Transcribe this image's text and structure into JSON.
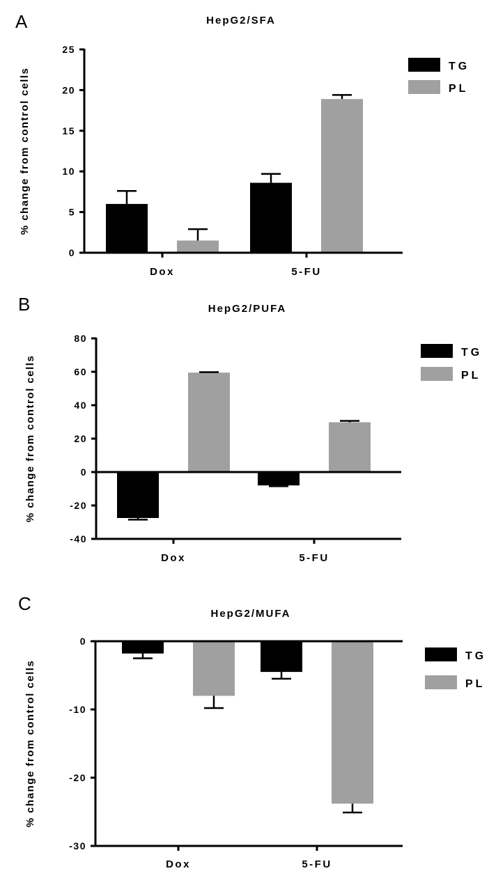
{
  "chart_data": [
    {
      "type": "bar",
      "panel": "A",
      "title": "HepG2/SFA",
      "ylabel": "% change from control cells",
      "xlabel": "",
      "categories": [
        "Dox",
        "5-FU"
      ],
      "ylim": [
        0,
        25
      ],
      "yticks": [
        0,
        5,
        10,
        15,
        20,
        25
      ],
      "ytick_labels": [
        "0",
        "5",
        "10",
        "15",
        "20",
        "25"
      ],
      "legend_position": "top-right",
      "series": [
        {
          "name": "TG",
          "color": "#000000",
          "values": [
            6.0,
            8.6
          ],
          "errors": [
            1.6,
            1.1
          ]
        },
        {
          "name": "PL",
          "color": "#a0a0a0",
          "values": [
            1.5,
            18.9
          ],
          "errors": [
            1.4,
            0.5
          ]
        }
      ]
    },
    {
      "type": "bar",
      "panel": "B",
      "title": "HepG2/PUFA",
      "ylabel": "% change from control cells",
      "xlabel": "",
      "categories": [
        "Dox",
        "5-FU"
      ],
      "ylim": [
        -40,
        80
      ],
      "yticks": [
        -40,
        -20,
        0,
        20,
        40,
        60,
        80
      ],
      "ytick_labels": [
        "-40",
        "-20",
        "0",
        "20",
        "40",
        "60",
        "80"
      ],
      "legend_position": "top-right",
      "series": [
        {
          "name": "TG",
          "color": "#000000",
          "values": [
            -27.5,
            -8.0
          ],
          "errors": [
            1.0,
            0.5
          ]
        },
        {
          "name": "PL",
          "color": "#a0a0a0",
          "values": [
            59.5,
            29.8
          ],
          "errors": [
            0.3,
            0.8
          ]
        }
      ]
    },
    {
      "type": "bar",
      "panel": "C",
      "title": "HepG2/MUFA",
      "ylabel": "% change from control cells",
      "xlabel": "",
      "categories": [
        "Dox",
        "5-FU"
      ],
      "ylim": [
        -30,
        0
      ],
      "yticks": [
        -30,
        -20,
        -10,
        0
      ],
      "ytick_labels": [
        "-30",
        "-20",
        "-10",
        "0"
      ],
      "legend_position": "top-right",
      "series": [
        {
          "name": "TG",
          "color": "#000000",
          "values": [
            -1.8,
            -4.5
          ],
          "errors": [
            0.7,
            1.0
          ]
        },
        {
          "name": "PL",
          "color": "#a0a0a0",
          "values": [
            -8.0,
            -23.8
          ],
          "errors": [
            1.8,
            1.3
          ]
        }
      ]
    }
  ]
}
